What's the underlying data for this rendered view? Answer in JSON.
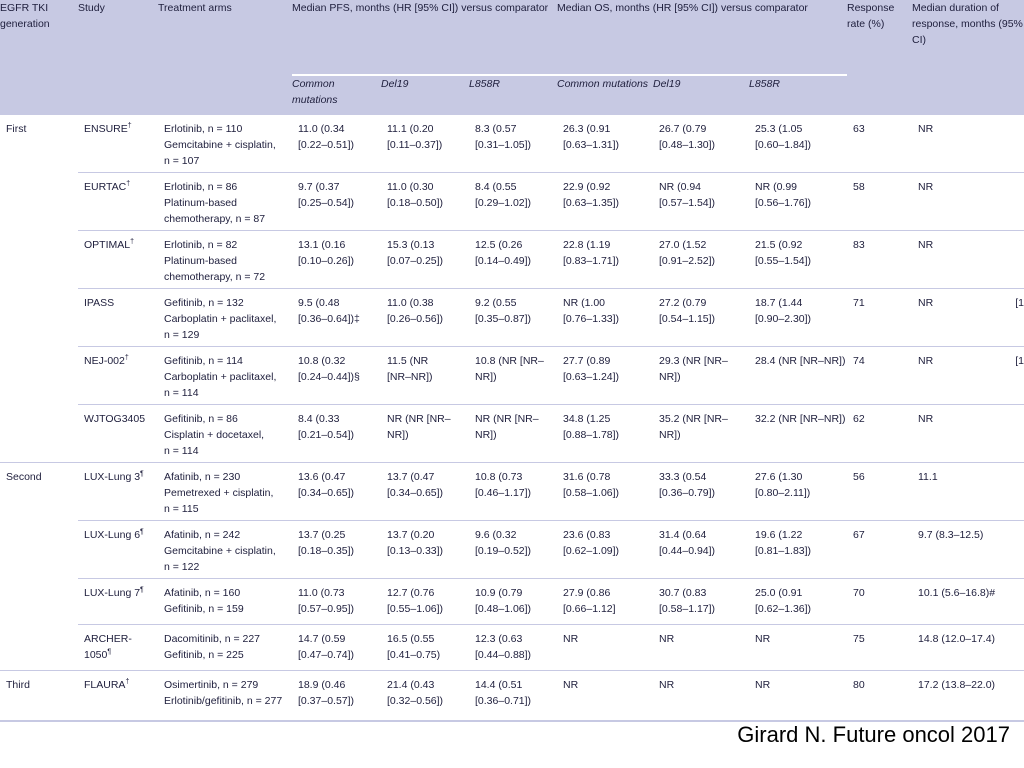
{
  "header": {
    "gen": "EGFR TKI generation",
    "study": "Study",
    "arms": "Treatment arms",
    "pfs_group": "Median PFS, months (HR [95% CI]) versus comparator",
    "os_group": "Median OS, months (HR [95% CI]) versus comparator",
    "response": "Response rate (%)",
    "duration": "Median duration of response, months (95% CI)",
    "sub_common": "Common mutations",
    "sub_del19": "Del19",
    "sub_l858r": "L858R"
  },
  "rows": [
    {
      "gen": "First",
      "study": "ENSURE",
      "mark": "†",
      "arms": "Erlotinib, n = 110\nGemcitabine + cisplatin,\nn = 107",
      "pfs_c": "11.0 (0.34\n[0.22–0.51])",
      "pfs_d": "11.1 (0.20\n[0.11–0.37])",
      "pfs_l": "8.3 (0.57\n[0.31–1.05])",
      "os_c": "26.3 (0.91\n[0.63–1.31])",
      "os_d": "26.7 (0.79\n[0.48–1.30])",
      "os_l": "25.3 (1.05\n[0.60–1.84])",
      "rr": "63",
      "dur": "NR",
      "extra": ""
    },
    {
      "gen": "",
      "study": "EURTAC",
      "mark": "†",
      "arms": "Erlotinib, n = 86\nPlatinum-based\nchemotherapy, n = 87",
      "pfs_c": "9.7 (0.37\n[0.25–0.54])",
      "pfs_d": "11.0 (0.30\n[0.18–0.50])",
      "pfs_l": "8.4 (0.55\n[0.29–1.02])",
      "os_c": "22.9 (0.92\n[0.63–1.35])",
      "os_d": "NR (0.94\n[0.57–1.54])",
      "os_l": "NR (0.99\n[0.56–1.76])",
      "rr": "58",
      "dur": "NR",
      "extra": ""
    },
    {
      "gen": "",
      "study": "OPTIMAL",
      "mark": "†",
      "arms": "Erlotinib, n = 82\nPlatinum-based\nchemotherapy, n = 72",
      "pfs_c": "13.1 (0.16\n[0.10–0.26])",
      "pfs_d": "15.3 (0.13\n[0.07–0.25])",
      "pfs_l": "12.5 (0.26\n[0.14–0.49])",
      "os_c": "22.8 (1.19\n[0.83–1.71])",
      "os_d": "27.0 (1.52\n[0.91–2.52])",
      "os_l": "21.5 (0.92\n[0.55–1.54])",
      "rr": "83",
      "dur": "NR",
      "extra": ""
    },
    {
      "gen": "",
      "study": "IPASS",
      "mark": "",
      "arms": "Gefitinib, n = 132\nCarboplatin + paclitaxel,\nn = 129",
      "pfs_c": "9.5 (0.48\n[0.36–0.64])‡",
      "pfs_d": "11.0 (0.38\n[0.26–0.56])",
      "pfs_l": "9.2 (0.55\n[0.35–0.87])",
      "os_c": "NR (1.00\n[0.76–1.33])",
      "os_d": "27.2 (0.79\n[0.54–1.15])",
      "os_l": "18.7 (1.44\n[0.90–2.30])",
      "rr": "71",
      "dur": "NR",
      "extra": "[1"
    },
    {
      "gen": "",
      "study": "NEJ-002",
      "mark": "†",
      "arms": "Gefitinib, n = 114\nCarboplatin + paclitaxel,\nn = 114",
      "pfs_c": "10.8 (0.32\n[0.24–0.44])§",
      "pfs_d": "11.5 (NR\n[NR–NR])",
      "pfs_l": "10.8 (NR [NR–NR])",
      "os_c": "27.7 (0.89\n[0.63–1.24])",
      "os_d": "29.3 (NR [NR–NR])",
      "os_l": "28.4 (NR [NR–NR])",
      "rr": "74",
      "dur": "NR",
      "extra": "[1"
    },
    {
      "gen": "",
      "study": "WJTOG3405",
      "mark": "",
      "arms": "Gefitinib, n = 86\nCisplatin + docetaxel,\nn = 114",
      "pfs_c": "8.4 (0.33\n[0.21–0.54])",
      "pfs_d": "NR (NR [NR–NR])",
      "pfs_l": "NR (NR [NR–NR])",
      "os_c": "34.8 (1.25\n[0.88–1.78])",
      "os_d": "35.2 (NR [NR–NR])",
      "os_l": "32.2 (NR [NR–NR])",
      "rr": "62",
      "dur": "NR",
      "extra": ""
    },
    {
      "gen": "Second",
      "study": "LUX-Lung 3",
      "mark": "¶",
      "arms": "Afatinib, n = 230\nPemetrexed + cisplatin,\nn = 115",
      "pfs_c": "13.6 (0.47\n[0.34–0.65])",
      "pfs_d": "13.7 (0.47\n[0.34–0.65])",
      "pfs_l": "10.8 (0.73\n[0.46–1.17])",
      "os_c": "31.6 (0.78\n[0.58–1.06])",
      "os_d": "33.3 (0.54\n[0.36–0.79])",
      "os_l": "27.6 (1.30\n[0.80–2.11])",
      "rr": "56",
      "dur": "11.1",
      "extra": ""
    },
    {
      "gen": "",
      "study": "LUX-Lung 6",
      "mark": "¶",
      "arms": "Afatinib, n = 242\nGemcitabine + cisplatin,\nn = 122",
      "pfs_c": "13.7 (0.25\n[0.18–0.35])",
      "pfs_d": "13.7 (0.20\n[0.13–0.33])",
      "pfs_l": "9.6 (0.32\n[0.19–0.52])",
      "os_c": "23.6 (0.83\n[0.62–1.09])",
      "os_d": "31.4 (0.64\n[0.44–0.94])",
      "os_l": "19.6 (1.22\n[0.81–1.83])",
      "rr": "67",
      "dur": "9.7 (8.3–12.5)",
      "extra": ""
    },
    {
      "gen": "",
      "study": "LUX-Lung 7",
      "mark": "¶",
      "arms": "Afatinib, n = 160\nGefitinib, n = 159",
      "pfs_c": "11.0 (0.73\n[0.57–0.95])",
      "pfs_d": "12.7 (0.76\n[0.55–1.06])",
      "pfs_l": "10.9 (0.79\n[0.48–1.06])",
      "os_c": "27.9 (0.86\n[0.66–1.12]",
      "os_d": "30.7 (0.83\n[0.58–1.17])",
      "os_l": "25.0 (0.91\n[0.62–1.36])",
      "rr": "70",
      "dur": "10.1 (5.6–16.8)#",
      "extra": ""
    },
    {
      "gen": "",
      "study": "ARCHER-\n1050",
      "mark": "¶",
      "arms": "Dacomitinib, n = 227\nGefitinib, n = 225",
      "pfs_c": "14.7 (0.59\n[0.47–0.74])",
      "pfs_d": "16.5 (0.55\n[0.41–0.75)",
      "pfs_l": "12.3 (0.63\n[0.44–0.88])",
      "os_c": "NR",
      "os_d": "NR",
      "os_l": "NR",
      "rr": "75",
      "dur": "14.8 (12.0–17.4)",
      "extra": ""
    },
    {
      "gen": "Third",
      "study": "FLAURA",
      "mark": "†",
      "arms": "Osimertinib, n = 279\nErlotinib/gefitinib, n = 277",
      "pfs_c": "18.9 (0.46\n[0.37–0.57])",
      "pfs_d": "21.4 (0.43\n[0.32–0.56])",
      "pfs_l": "14.4 (0.51\n[0.36–0.71])",
      "os_c": "NR",
      "os_d": "NR",
      "os_l": "NR",
      "rr": "80",
      "dur": "17.2 (13.8–22.0)",
      "extra": ""
    }
  ],
  "citation": "Girard N. Future oncol 2017"
}
